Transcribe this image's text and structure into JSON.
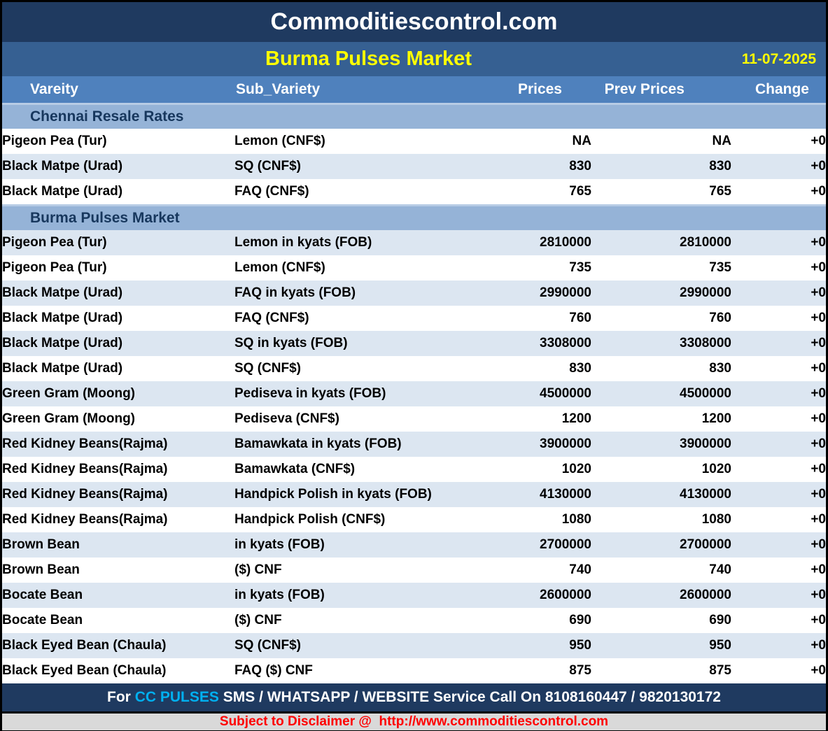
{
  "page": {
    "site_title": "Commoditiescontrol.com",
    "report_title": "Burma Pulses Market",
    "report_date": "11-07-2025"
  },
  "table": {
    "columns": [
      "Vareity",
      "Sub_Variety",
      "Prices",
      "Prev Prices",
      "Change"
    ],
    "sections": [
      {
        "title": "Chennai Resale Rates",
        "rows": [
          {
            "variety": "Pigeon Pea (Tur)",
            "sub_variety": "Lemon (CNF$)",
            "price": "NA",
            "prev_price": "NA",
            "change": "+0"
          },
          {
            "variety": "Black Matpe (Urad)",
            "sub_variety": "SQ (CNF$)",
            "price": "830",
            "prev_price": "830",
            "change": "+0"
          },
          {
            "variety": "Black Matpe (Urad)",
            "sub_variety": "FAQ (CNF$)",
            "price": "765",
            "prev_price": "765",
            "change": "+0"
          }
        ]
      },
      {
        "title": "Burma Pulses Market",
        "rows": [
          {
            "variety": "Pigeon Pea (Tur)",
            "sub_variety": "Lemon in kyats (FOB)",
            "price": "2810000",
            "prev_price": "2810000",
            "change": "+0"
          },
          {
            "variety": "Pigeon Pea (Tur)",
            "sub_variety": "Lemon (CNF$)",
            "price": "735",
            "prev_price": "735",
            "change": "+0"
          },
          {
            "variety": "Black Matpe (Urad)",
            "sub_variety": "FAQ in kyats (FOB)",
            "price": "2990000",
            "prev_price": "2990000",
            "change": "+0"
          },
          {
            "variety": "Black Matpe (Urad)",
            "sub_variety": "FAQ (CNF$)",
            "price": "760",
            "prev_price": "760",
            "change": "+0"
          },
          {
            "variety": "Black Matpe (Urad)",
            "sub_variety": "SQ in kyats (FOB)",
            "price": "3308000",
            "prev_price": "3308000",
            "change": "+0"
          },
          {
            "variety": "Black Matpe (Urad)",
            "sub_variety": "SQ (CNF$)",
            "price": "830",
            "prev_price": "830",
            "change": "+0"
          },
          {
            "variety": "Green Gram (Moong)",
            "sub_variety": "Pediseva in kyats (FOB)",
            "price": "4500000",
            "prev_price": "4500000",
            "change": "+0"
          },
          {
            "variety": "Green Gram (Moong)",
            "sub_variety": "Pediseva (CNF$)",
            "price": "1200",
            "prev_price": "1200",
            "change": "+0"
          },
          {
            "variety": "Red Kidney Beans(Rajma)",
            "sub_variety": "Bamawkata in kyats (FOB)",
            "price": "3900000",
            "prev_price": "3900000",
            "change": "+0"
          },
          {
            "variety": "Red Kidney Beans(Rajma)",
            "sub_variety": "Bamawkata (CNF$)",
            "price": "1020",
            "prev_price": "1020",
            "change": "+0"
          },
          {
            "variety": "Red Kidney Beans(Rajma)",
            "sub_variety": "Handpick Polish in kyats (FOB)",
            "price": "4130000",
            "prev_price": "4130000",
            "change": "+0"
          },
          {
            "variety": "Red Kidney Beans(Rajma)",
            "sub_variety": "Handpick Polish (CNF$)",
            "price": "1080",
            "prev_price": "1080",
            "change": "+0"
          },
          {
            "variety": "Brown Bean",
            "sub_variety": "in kyats (FOB)",
            "price": "2700000",
            "prev_price": "2700000",
            "change": "+0"
          },
          {
            "variety": "Brown Bean",
            "sub_variety": "($) CNF",
            "price": "740",
            "prev_price": "740",
            "change": "+0"
          },
          {
            "variety": "Bocate Bean",
            "sub_variety": "in kyats (FOB)",
            "price": "2600000",
            "prev_price": "2600000",
            "change": "+0"
          },
          {
            "variety": "Bocate Bean",
            "sub_variety": "($) CNF",
            "price": "690",
            "prev_price": "690",
            "change": "+0"
          },
          {
            "variety": "Black Eyed Bean (Chaula)",
            "sub_variety": "SQ (CNF$)",
            "price": "950",
            "prev_price": "950",
            "change": "+0"
          },
          {
            "variety": "Black Eyed Bean (Chaula)",
            "sub_variety": "FAQ ($) CNF",
            "price": "875",
            "prev_price": "875",
            "change": "+0"
          }
        ]
      }
    ]
  },
  "footer": {
    "service_prefix": "For ",
    "service_highlight": "CC PULSES",
    "service_rest": " SMS / WHATSAPP / WEBSITE Service Call On 8108160447 / 9820130172",
    "disclaimer": "Subject to Disclaimer @  http://www.commoditiescontrol.com"
  },
  "colors": {
    "outer_border": "#000000",
    "top_bar_bg": "#1F3A60",
    "title_bar_bg": "#366092",
    "column_header_bg": "#4F81BD",
    "section_band_bg": "#95B3D7",
    "section_text": "#17375D",
    "row_alt_bg": "#DCE6F1",
    "row_bg": "#FFFFFF",
    "accent_yellow": "#FFFF00",
    "change_green": "#008000",
    "highlight_cyan": "#00B0F0",
    "disclaimer_red": "#FF0000",
    "disclaimer_bg": "#D9D9D9"
  }
}
